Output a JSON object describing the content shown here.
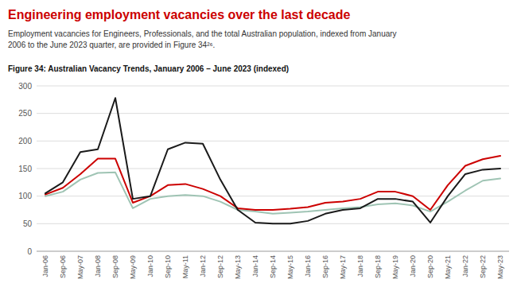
{
  "chart_data": {
    "type": "line",
    "title": "Engineering employment vacancies over the last decade",
    "subtitle": "Employment vacancies for Engineers, Professionals, and the total Australian population, indexed from January\n2006 to the June 2023 quarter, are provided in Figure 34²⁶.",
    "annotations": [
      "Figure 34: Australian Vacancy Trends, January 2006 – June 2023 (indexed)"
    ],
    "categories": [
      "Jan-06",
      "Sep-06",
      "May-07",
      "Jan-08",
      "Sep-08",
      "May-09",
      "Jan-10",
      "Sep-10",
      "May-11",
      "Jan-12",
      "Sep-12",
      "May-13",
      "Jan-14",
      "Sep-14",
      "May-15",
      "Jan-16",
      "Sep-16",
      "May-17",
      "Jan-18",
      "Sep-18",
      "May-19",
      "Jan-20",
      "Sep-20",
      "May-21",
      "Jan-22",
      "Sep-22",
      "May-23"
    ],
    "series": [
      {
        "color": "#9fc4b4",
        "values": [
          100,
          108,
          130,
          142,
          143,
          78,
          95,
          100,
          102,
          100,
          90,
          75,
          72,
          68,
          70,
          72,
          75,
          78,
          80,
          85,
          87,
          83,
          72,
          90,
          110,
          128,
          132
        ]
      },
      {
        "color": "#cc0000",
        "values": [
          103,
          115,
          140,
          168,
          168,
          88,
          100,
          120,
          122,
          113,
          100,
          78,
          75,
          75,
          77,
          80,
          88,
          90,
          95,
          108,
          108,
          100,
          75,
          120,
          155,
          167,
          173
        ]
      },
      {
        "color": "#1a1a1a",
        "values": [
          105,
          125,
          180,
          185,
          278,
          95,
          100,
          185,
          197,
          195,
          130,
          75,
          52,
          50,
          50,
          55,
          68,
          75,
          78,
          95,
          95,
          90,
          52,
          100,
          140,
          148,
          150
        ]
      }
    ],
    "ylim": [
      0,
      300
    ],
    "yticks": [
      0,
      50,
      100,
      150,
      200,
      250,
      300
    ],
    "grid": true
  }
}
